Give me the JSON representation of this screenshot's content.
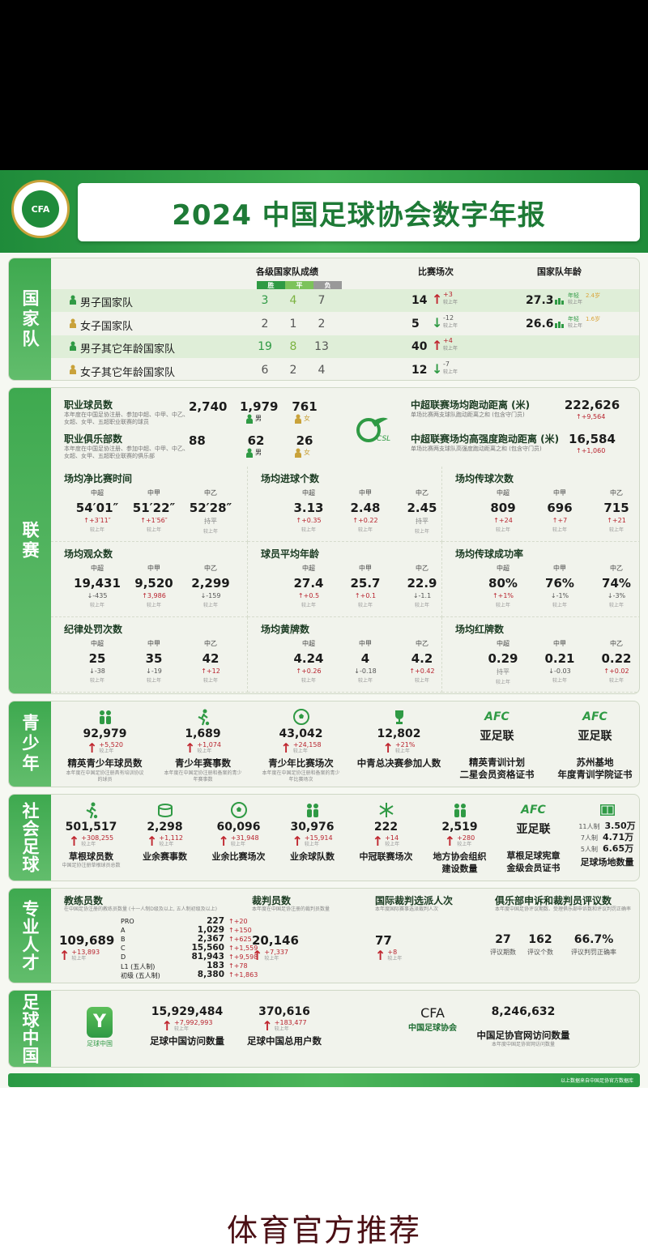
{
  "header": {
    "title": "2024 中国足球协会数字年报",
    "logo_text": "CFA",
    "logo_ring_text": "中国足球协会"
  },
  "colors": {
    "primary_green": "#2f9a44",
    "increase": "#b8232e",
    "panel": "#f1f3ec"
  },
  "national": {
    "label": "国家队",
    "h_results": "各级国家队成绩",
    "h_matches": "比赛场次",
    "h_age": "国家队年龄",
    "win": "胜",
    "draw": "平",
    "loss": "负",
    "vs_last": "较上年",
    "rows": [
      {
        "name": "男子国家队",
        "gender": "male",
        "w": "3",
        "d": "4",
        "l": "7",
        "matches": "14",
        "delta": "+3",
        "dir": "up",
        "age": "27.3",
        "age_note": "年轻",
        "age_delta": "2.4岁"
      },
      {
        "name": "女子国家队",
        "gender": "female",
        "w": "2",
        "d": "1",
        "l": "2",
        "matches": "5",
        "delta": "-12",
        "dir": "down",
        "age": "26.6",
        "age_note": "年轻",
        "age_delta": "1.6岁"
      },
      {
        "name": "男子其它年龄国家队",
        "gender": "male",
        "w": "19",
        "d": "8",
        "l": "13",
        "matches": "40",
        "delta": "+4",
        "dir": "up"
      },
      {
        "name": "女子其它年龄国家队",
        "gender": "female",
        "w": "6",
        "d": "2",
        "l": "4",
        "matches": "12",
        "delta": "-7",
        "dir": "down"
      }
    ]
  },
  "league": {
    "label": "联赛",
    "csl_logo": "CSL",
    "male": "男",
    "female": "女",
    "players": {
      "title": "职业球员数",
      "desc": "本年度在中国足协注册、参加中超、中甲、中乙、女超、女甲、五超职业联赛的球员",
      "total": "2,740",
      "male": "1,979",
      "female": "761"
    },
    "clubs": {
      "title": "职业俱乐部数",
      "desc": "本年度在中国足协注册、参加中超、中甲、中乙、女超、女甲、五超职业联赛的俱乐部",
      "total": "88",
      "male": "62",
      "female": "26"
    },
    "running": {
      "title": "中超联赛场均跑动距离 (米)",
      "desc": "单场比赛两支球队跑动距离之和 (包含守门员)",
      "value": "222,626",
      "delta": "+9,564"
    },
    "hi_running": {
      "title": "中超联赛场均高强度跑动距离 (米)",
      "desc": "单场比赛两支球队高强度跑动距离之和 (包含守门员)",
      "value": "16,584",
      "delta": "+1,060"
    },
    "leagues": [
      "中超",
      "中甲",
      "中乙"
    ],
    "vs_last": "较上年",
    "cells": [
      {
        "title": "场均净比赛时间",
        "items": [
          {
            "v": "54′01″",
            "d": "+3′11″",
            "dir": "up"
          },
          {
            "v": "51′22″",
            "d": "+1′56″",
            "dir": "up"
          },
          {
            "v": "52′28″",
            "d": "持平",
            "dir": "flat"
          }
        ]
      },
      {
        "title": "场均进球个数",
        "items": [
          {
            "v": "3.13",
            "d": "+0.35",
            "dir": "up"
          },
          {
            "v": "2.48",
            "d": "+0.22",
            "dir": "up"
          },
          {
            "v": "2.45",
            "d": "持平",
            "dir": "flat"
          }
        ]
      },
      {
        "title": "场均传球次数",
        "items": [
          {
            "v": "809",
            "d": "+24",
            "dir": "up"
          },
          {
            "v": "696",
            "d": "+7",
            "dir": "up"
          },
          {
            "v": "715",
            "d": "+21",
            "dir": "up"
          }
        ]
      },
      {
        "title": "场均观众数",
        "items": [
          {
            "v": "19,431",
            "d": "-435",
            "dir": "down"
          },
          {
            "v": "9,520",
            "d": "3,986",
            "dir": "up"
          },
          {
            "v": "2,299",
            "d": "-159",
            "dir": "down"
          }
        ]
      },
      {
        "title": "球员平均年龄",
        "items": [
          {
            "v": "27.4",
            "d": "+0.5",
            "dir": "up"
          },
          {
            "v": "25.7",
            "d": "+0.1",
            "dir": "up"
          },
          {
            "v": "22.9",
            "d": "-1.1",
            "dir": "down"
          }
        ]
      },
      {
        "title": "场均传球成功率",
        "items": [
          {
            "v": "80%",
            "d": "+1%",
            "dir": "up"
          },
          {
            "v": "76%",
            "d": "-1%",
            "dir": "down"
          },
          {
            "v": "74%",
            "d": "-3%",
            "dir": "down"
          }
        ]
      },
      {
        "title": "纪律处罚次数",
        "items": [
          {
            "v": "25",
            "d": "-38",
            "dir": "down"
          },
          {
            "v": "35",
            "d": "-19",
            "dir": "down"
          },
          {
            "v": "42",
            "d": "+12",
            "dir": "up"
          }
        ]
      },
      {
        "title": "场均黄牌数",
        "items": [
          {
            "v": "4.24",
            "d": "+0.26",
            "dir": "up"
          },
          {
            "v": "4",
            "d": "-0.18",
            "dir": "down"
          },
          {
            "v": "4.2",
            "d": "+0.42",
            "dir": "up"
          }
        ]
      },
      {
        "title": "场均红牌数",
        "items": [
          {
            "v": "0.29",
            "d": "持平",
            "dir": "flat"
          },
          {
            "v": "0.21",
            "d": "-0.03",
            "dir": "down"
          },
          {
            "v": "0.22",
            "d": "+0.02",
            "dir": "up"
          }
        ]
      }
    ]
  },
  "youth": {
    "label": "青少年",
    "vs_last": "较上年",
    "items": [
      {
        "icon": "players-group-icon",
        "value": "92,979",
        "delta": "+5,520",
        "label": "精英青少年球员数",
        "desc": "本年度在中国足协注册具有培训协议的球员"
      },
      {
        "icon": "kicker-icon",
        "value": "1,689",
        "delta": "+1,074",
        "label": "青少年赛事数",
        "desc": "本年度在中国足协注册和备案的青少年赛事数"
      },
      {
        "icon": "ball-icon",
        "value": "43,042",
        "delta": "+24,158",
        "label": "青少年比赛场次",
        "desc": "本年度在中国足协注册和备案的青少年比赛场次"
      },
      {
        "icon": "trophy-icon",
        "value": "12,802",
        "delta": "+21%",
        "label": "中青总决赛参加人数"
      },
      {
        "icon": "afc-logo-icon",
        "value": "亚足联",
        "label": "精英青训计划",
        "label2": "二星会员资格证书"
      },
      {
        "icon": "afc-logo-icon",
        "value": "亚足联",
        "label": "苏州基地",
        "label2": "年度青训学院证书"
      }
    ]
  },
  "social": {
    "label": "社会足球",
    "vs_last": "较上年",
    "afc": "AFC",
    "items": [
      {
        "icon": "runner-icon",
        "value": "501,517",
        "delta": "+308,255",
        "label": "草根球员数",
        "desc": "中国足协注册草根球员总数"
      },
      {
        "icon": "stadium-icon",
        "value": "2,298",
        "delta": "+1,112",
        "label": "业余赛事数"
      },
      {
        "icon": "ball-icon",
        "value": "60,096",
        "delta": "+31,948",
        "label": "业余比赛场次"
      },
      {
        "icon": "team-icon",
        "value": "30,976",
        "delta": "+15,914",
        "label": "业余球队数"
      },
      {
        "icon": "snowflake-icon",
        "value": "222",
        "delta": "+14",
        "label": "中冠联赛场次"
      },
      {
        "icon": "people-icon",
        "value": "2,519",
        "delta": "+280",
        "label": "地方协会组织",
        "label2": "建设数量"
      },
      {
        "icon": "afc-logo-icon",
        "value": "亚足联",
        "label": "草根足球宪章",
        "label2": "金级会员证书"
      }
    ],
    "pitches": {
      "icon": "pitch-icon",
      "label": "足球场地数量",
      "rows": [
        {
          "k": "11人制",
          "v": "3.50万"
        },
        {
          "k": "7人制",
          "v": "4.71万"
        },
        {
          "k": "5人制",
          "v": "6.65万"
        }
      ]
    }
  },
  "pro": {
    "label": "专业人才",
    "vs_last": "较上年",
    "coaches": {
      "title": "教练员数",
      "desc": "在中国足协注册的教练员数量 (十一人制D级及以上, 五人制初级及以上)",
      "value": "109,689",
      "delta": "+13,893",
      "levels": [
        {
          "k": "PRO",
          "v": "227",
          "d": "+20"
        },
        {
          "k": "A",
          "v": "1,029",
          "d": "+150"
        },
        {
          "k": "B",
          "v": "2,367",
          "d": "+625"
        },
        {
          "k": "C",
          "v": "15,560",
          "d": "+1,559"
        },
        {
          "k": "D",
          "v": "81,943",
          "d": "+9,598"
        },
        {
          "k": "L1 (五人制)",
          "v": "183",
          "d": "+78"
        },
        {
          "k": "初级 (五人制)",
          "v": "8,380",
          "d": "+1,863"
        }
      ]
    },
    "referees": {
      "title": "裁判员数",
      "desc": "本年度在中国足协注册的裁判员数量",
      "value": "20,146",
      "delta": "+7,337"
    },
    "intl": {
      "title": "国际裁判选派人次",
      "desc": "本年度国际赛事选派裁判人次",
      "value": "77",
      "delta": "+8"
    },
    "review": {
      "title": "俱乐部申诉和裁判员评议数",
      "desc": "本年度中国足协评议期数、受理俱乐部申诉数和评议判罚正确率",
      "items": [
        {
          "v": "27",
          "k": "评议期数"
        },
        {
          "v": "162",
          "k": "评议个数"
        },
        {
          "v": "66.7%",
          "k": "评议判罚正确率"
        }
      ]
    }
  },
  "fc": {
    "label": "足球中国",
    "vs_last": "较上年",
    "app_name": "足球中国",
    "visits": {
      "value": "15,929,484",
      "delta": "+7,992,993",
      "label": "足球中国访问数量"
    },
    "users": {
      "value": "370,616",
      "delta": "+183,477",
      "label": "足球中国总用户数"
    },
    "cfa_logo": "CFA",
    "cfa_name": "中国足球协会",
    "site": {
      "value": "8,246,632",
      "label": "中国足协官网访问数量",
      "desc": "本年度中国足协官网访问数量"
    }
  },
  "footer": {
    "source": "以上数据来自中国足协官方数据库"
  },
  "watermark": "体育官方推荐"
}
